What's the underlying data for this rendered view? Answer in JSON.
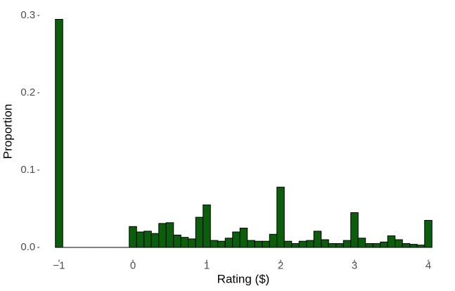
{
  "chart_data": {
    "type": "histogram",
    "xlabel": "Rating ($)",
    "ylabel": "Proportion",
    "bins": [
      -1.05,
      -0.95,
      -0.85,
      -0.75,
      -0.65,
      -0.55,
      -0.45,
      -0.35,
      -0.25,
      -0.15,
      -0.05,
      0.05,
      0.15,
      0.25,
      0.35,
      0.45,
      0.55,
      0.65,
      0.75,
      0.85,
      0.95,
      1.05,
      1.15,
      1.25,
      1.35,
      1.45,
      1.55,
      1.65,
      1.75,
      1.85,
      1.95,
      2.05,
      2.15,
      2.25,
      2.35,
      2.45,
      2.55,
      2.65,
      2.75,
      2.85,
      2.95,
      3.05,
      3.15,
      3.25,
      3.35,
      3.45,
      3.55,
      3.65,
      3.75,
      3.85,
      3.95,
      4.05
    ],
    "values": [
      0.295,
      0,
      0,
      0,
      0,
      0,
      0,
      0,
      0,
      0,
      0.027,
      0.02,
      0.021,
      0.018,
      0.031,
      0.032,
      0.016,
      0.013,
      0.011,
      0.039,
      0.055,
      0.009,
      0.008,
      0.012,
      0.02,
      0.025,
      0.009,
      0.008,
      0.008,
      0.017,
      0.078,
      0.008,
      0.005,
      0.008,
      0.009,
      0.021,
      0.01,
      0.005,
      0.005,
      0.009,
      0.045,
      0.012,
      0.005,
      0.005,
      0.007,
      0.015,
      0.01,
      0.005,
      0.004,
      0.003,
      0.035
    ],
    "color": "#0a5f0a",
    "edgecolor": "#000000",
    "xlim": [
      -1.255,
      4.255
    ],
    "ylim": [
      -0.015,
      0.315
    ],
    "xticks": [
      {
        "value": -1,
        "label": "−1"
      },
      0,
      1,
      2,
      3,
      4
    ],
    "yticks": [
      {
        "value": 0,
        "label": "0.0"
      },
      0.1,
      0.2,
      0.3
    ],
    "grid": false
  }
}
